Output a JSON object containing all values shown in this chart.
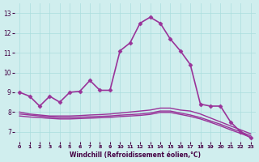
{
  "background_color": "#d0eeee",
  "grid_color": "#aadddd",
  "line_color": "#993399",
  "x_label": "Windchill (Refroidissement éolien,°C)",
  "ylim": [
    6.5,
    13.5
  ],
  "xlim": [
    -0.5,
    23.5
  ],
  "yticks": [
    7,
    8,
    9,
    10,
    11,
    12,
    13
  ],
  "xticks": [
    0,
    1,
    2,
    3,
    4,
    5,
    6,
    7,
    8,
    9,
    10,
    11,
    12,
    13,
    14,
    15,
    16,
    17,
    18,
    19,
    20,
    21,
    22,
    23
  ],
  "series": [
    {
      "x": [
        0,
        1,
        2,
        3,
        4,
        5,
        6,
        7,
        8,
        9,
        10,
        11,
        12,
        13,
        14,
        15,
        16,
        17,
        18,
        19,
        20,
        21,
        22,
        23
      ],
      "y": [
        9.0,
        8.8,
        8.3,
        8.8,
        8.5,
        9.0,
        9.05,
        9.6,
        9.1,
        9.1,
        11.1,
        11.5,
        12.5,
        12.8,
        12.5,
        11.7,
        11.1,
        10.4,
        8.4,
        8.3,
        8.3,
        7.5,
        7.0,
        6.7
      ],
      "marker": "D",
      "markersize": 2.5,
      "linewidth": 1.2
    },
    {
      "x": [
        0,
        1,
        2,
        3,
        4,
        5,
        6,
        7,
        8,
        9,
        10,
        11,
        12,
        13,
        14,
        15,
        16,
        17,
        18,
        19,
        20,
        21,
        22,
        23
      ],
      "y": [
        8.0,
        7.9,
        7.85,
        7.8,
        7.8,
        7.8,
        7.82,
        7.85,
        7.87,
        7.9,
        7.95,
        8.0,
        8.05,
        8.1,
        8.2,
        8.2,
        8.1,
        8.05,
        7.9,
        7.7,
        7.5,
        7.3,
        7.1,
        6.9
      ],
      "marker": null,
      "markersize": 0,
      "linewidth": 1.0
    },
    {
      "x": [
        0,
        1,
        2,
        3,
        4,
        5,
        6,
        7,
        8,
        9,
        10,
        11,
        12,
        13,
        14,
        15,
        16,
        17,
        18,
        19,
        20,
        21,
        22,
        23
      ],
      "y": [
        7.9,
        7.85,
        7.8,
        7.75,
        7.72,
        7.72,
        7.74,
        7.76,
        7.78,
        7.8,
        7.84,
        7.87,
        7.9,
        7.95,
        8.05,
        8.05,
        7.95,
        7.85,
        7.72,
        7.55,
        7.38,
        7.18,
        7.0,
        6.8
      ],
      "marker": null,
      "markersize": 0,
      "linewidth": 1.0
    },
    {
      "x": [
        0,
        1,
        2,
        3,
        4,
        5,
        6,
        7,
        8,
        9,
        10,
        11,
        12,
        13,
        14,
        15,
        16,
        17,
        18,
        19,
        20,
        21,
        22,
        23
      ],
      "y": [
        7.8,
        7.75,
        7.72,
        7.68,
        7.65,
        7.65,
        7.67,
        7.69,
        7.71,
        7.73,
        7.77,
        7.8,
        7.83,
        7.88,
        7.98,
        7.98,
        7.88,
        7.78,
        7.65,
        7.48,
        7.3,
        7.1,
        6.92,
        6.72
      ],
      "marker": null,
      "markersize": 0,
      "linewidth": 1.0
    }
  ]
}
